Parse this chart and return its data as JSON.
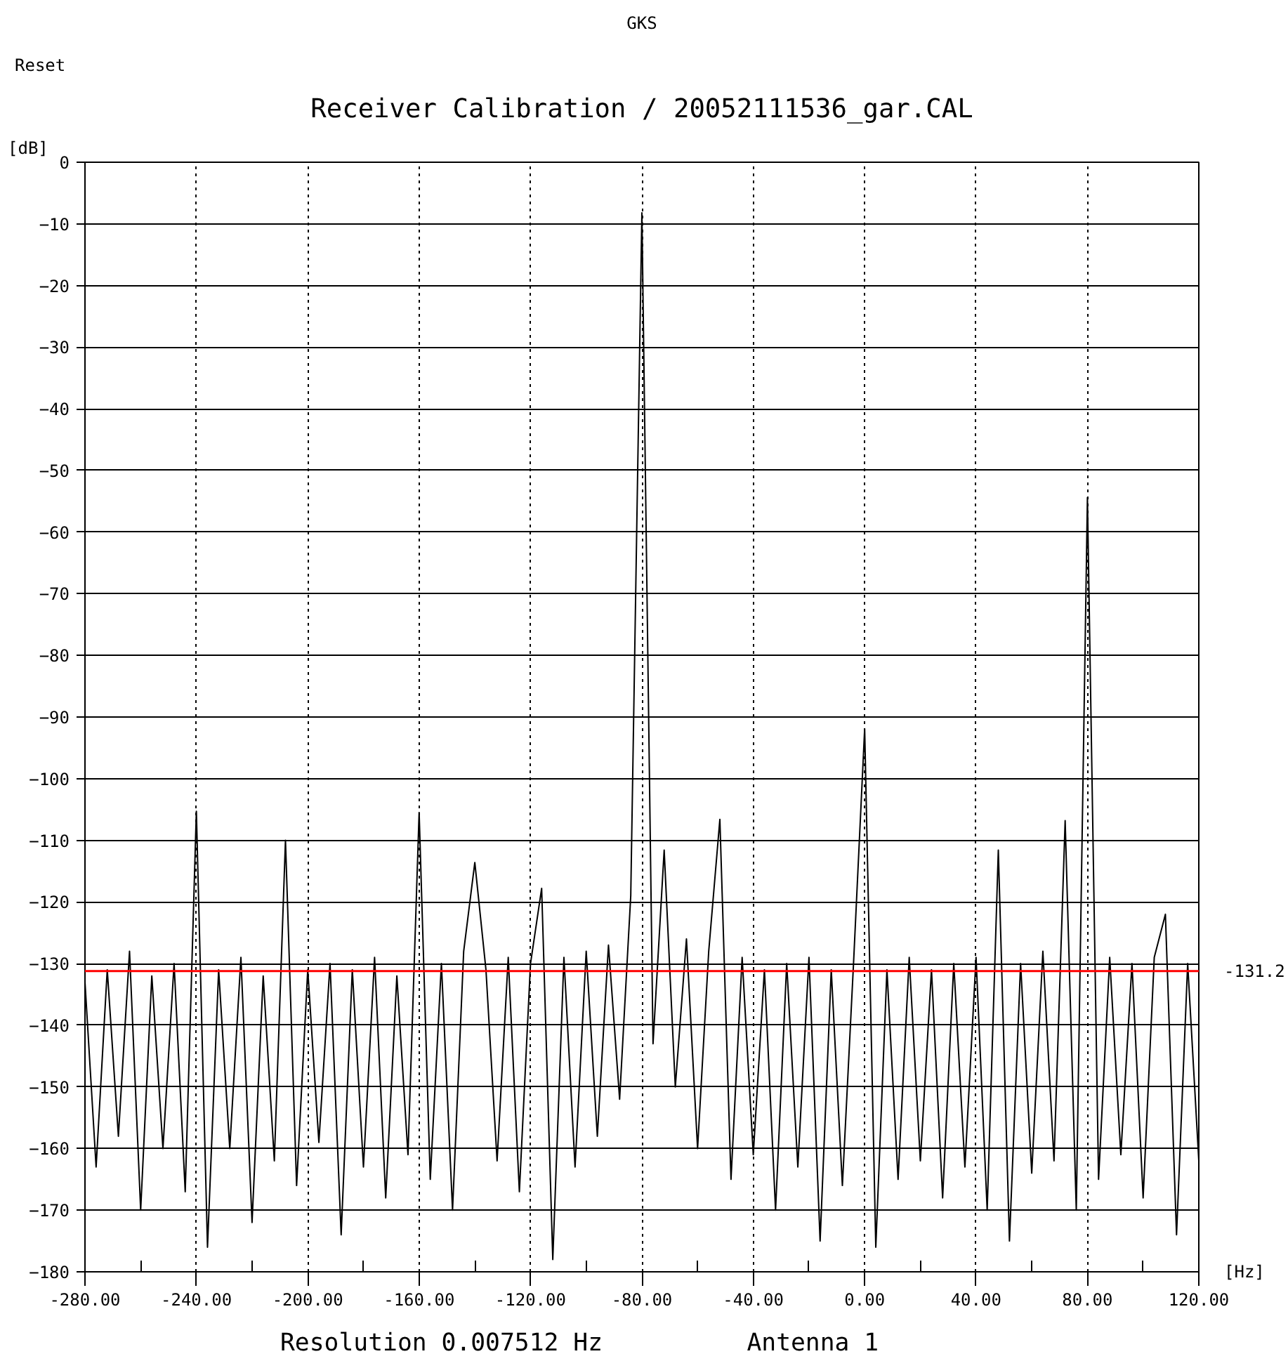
{
  "chart_data": {
    "type": "line",
    "title": "Receiver Calibration / 20052111536_gar.CAL",
    "xlabel": "[Hz]",
    "ylabel": "[dB]",
    "annotations": [
      "GKS",
      "Reset",
      "Resolution 0.007512 Hz",
      "Antenna  1"
    ],
    "series": [
      {
        "color": "#000000",
        "x": [
          -280,
          -276,
          -272,
          -268,
          -264,
          -260,
          -256,
          -252,
          -248,
          -244,
          -240,
          -236,
          -232,
          -228,
          -224,
          -220,
          -216,
          -212,
          -208,
          -204,
          -200,
          -196,
          -192,
          -188,
          -184,
          -180,
          -176,
          -172,
          -168,
          -164,
          -160,
          -156,
          -152,
          -148,
          -144,
          -140,
          -136,
          -132,
          -128,
          -124,
          -120,
          -116,
          -112,
          -108,
          -104,
          -100,
          -96,
          -92,
          -88,
          -84,
          -80,
          -76,
          -72,
          -68,
          -64,
          -60,
          -56,
          -52,
          -48,
          -44,
          -40,
          -36,
          -32,
          -28,
          -24,
          -20,
          -16,
          -12,
          -8,
          -4,
          0,
          4,
          8,
          12,
          16,
          20,
          24,
          28,
          32,
          36,
          40,
          44,
          48,
          52,
          56,
          60,
          64,
          68,
          72,
          76,
          80,
          84,
          88,
          92,
          96,
          100,
          104,
          108,
          112,
          116,
          120
        ],
        "values": [
          -133,
          -163,
          -131,
          -158,
          -128,
          -170,
          -132,
          -160,
          -130,
          -167,
          -105.3,
          -176,
          -131,
          -160,
          -129,
          -172,
          -132,
          -162,
          -110,
          -166,
          -131,
          -159,
          -130,
          -174,
          -131,
          -163,
          -129,
          -168,
          -132,
          -161,
          -105.5,
          -165,
          -130,
          -170,
          -128,
          -113.6,
          -131,
          -162,
          -129,
          -167,
          -130,
          -117.8,
          -178,
          -129,
          -163,
          -128,
          -158,
          -127,
          -152,
          -119,
          -8.2,
          -143,
          -111.6,
          -150,
          -126,
          -160,
          -128,
          -106.6,
          -165,
          -129,
          -161,
          -131,
          -170,
          -130,
          -163,
          -129,
          -175,
          -131,
          -166,
          -130,
          -91.9,
          -176,
          -131,
          -165,
          -129,
          -162,
          -131,
          -168,
          -130,
          -163,
          -129,
          -170,
          -111.6,
          -175,
          -130,
          -164,
          -128,
          -162,
          -106.8,
          -170,
          -54.4,
          -165,
          -129,
          -161,
          -130,
          -168,
          -129,
          -122,
          -174,
          -130,
          -162
        ]
      }
    ],
    "xlim": [
      -280,
      120
    ],
    "xticks": [
      {
        "value": -280,
        "label": "-280.00"
      },
      {
        "value": -240,
        "label": "-240.00"
      },
      {
        "value": -200,
        "label": "-200.00"
      },
      {
        "value": -160,
        "label": "-160.00"
      },
      {
        "value": -120,
        "label": "-120.00"
      },
      {
        "value": -80,
        "label": "-80.00"
      },
      {
        "value": -40,
        "label": "-40.00"
      },
      {
        "value": 0,
        "label": "0.00"
      },
      {
        "value": 40,
        "label": "40.00"
      },
      {
        "value": 80,
        "label": "80.00"
      },
      {
        "value": 120,
        "label": "120.00"
      }
    ],
    "ylim": [
      -180,
      0
    ],
    "yticks": [
      -180,
      -170,
      -160,
      -150,
      -140,
      -130,
      -120,
      -110,
      -100,
      -90,
      -80,
      -70,
      -60,
      -50,
      -40,
      -30,
      -20,
      -10,
      0
    ],
    "ref_lines": [
      {
        "axis": "y",
        "value": -131.2,
        "label": "-131.2",
        "color": "#ff0000"
      }
    ],
    "grid": true,
    "marker": "none",
    "line_style": "solid"
  }
}
